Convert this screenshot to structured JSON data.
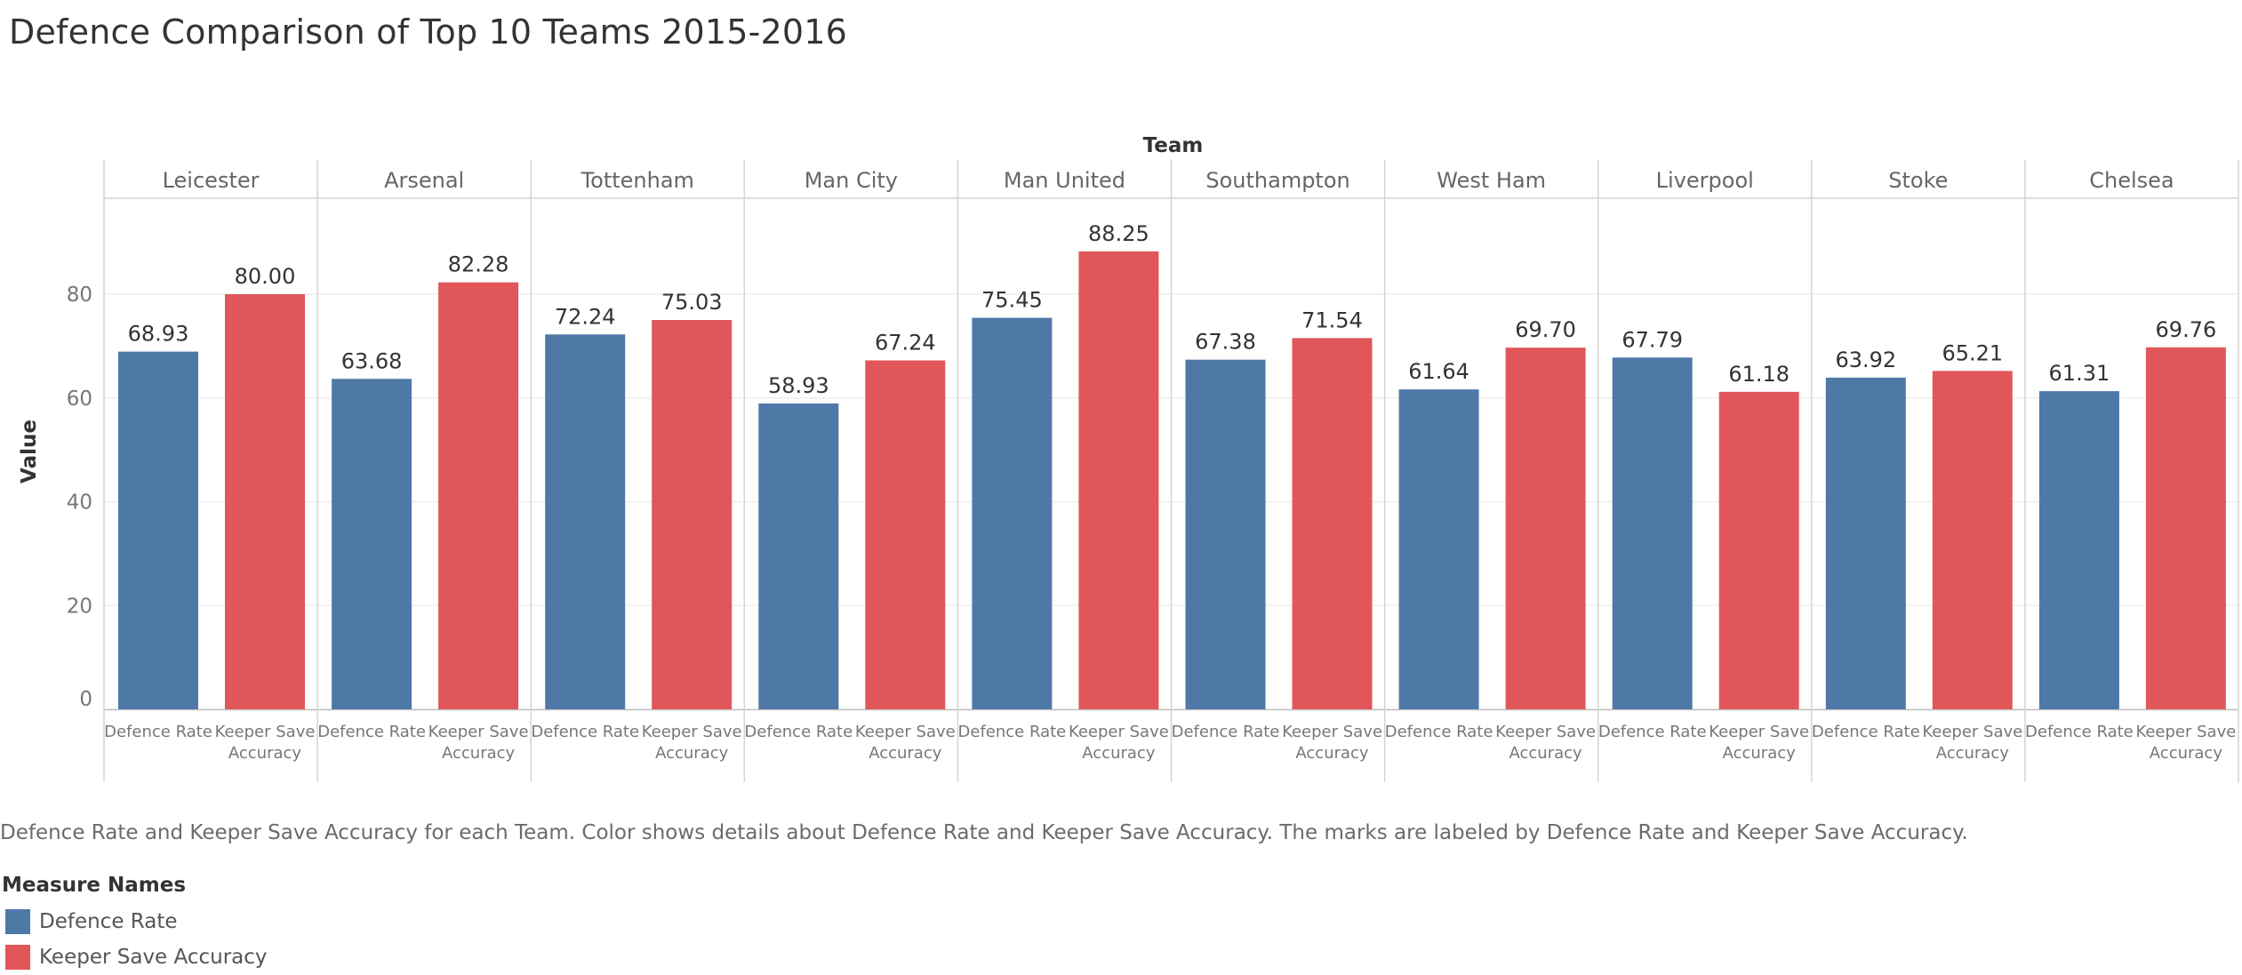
{
  "title": "Defence Comparison of Top 10 Teams 2015-2016",
  "caption": "Defence Rate and Keeper Save Accuracy for each Team.  Color shows details about Defence Rate and Keeper Save Accuracy.  The marks are labeled by Defence Rate and Keeper Save Accuracy.",
  "legend": {
    "title": "Measure Names",
    "items": [
      {
        "label": "Defence Rate",
        "color": "#4e79a7"
      },
      {
        "label": "Keeper Save Accuracy",
        "color": "#e15759"
      }
    ]
  },
  "chart_data": {
    "type": "bar",
    "column_header": "Team",
    "ylabel": "Value",
    "ylim": [
      0,
      100
    ],
    "yticks": [
      0,
      20,
      40,
      60,
      80
    ],
    "grid": true,
    "categories": [
      "Leicester",
      "Arsenal",
      "Tottenham",
      "Man City",
      "Man United",
      "Southampton",
      "West Ham",
      "Liverpool",
      "Stoke",
      "Chelsea"
    ],
    "measure_labels": [
      [
        "Defence Rate"
      ],
      [
        "Keeper Save",
        "Accuracy"
      ]
    ],
    "series": [
      {
        "name": "Defence Rate",
        "color": "#4e79a7",
        "values": [
          68.93,
          63.68,
          72.24,
          58.93,
          75.45,
          67.38,
          61.64,
          67.79,
          63.92,
          61.31
        ],
        "labels": [
          "68.93",
          "63.68",
          "72.24",
          "58.93",
          "75.45",
          "67.38",
          "61.64",
          "67.79",
          "63.92",
          "61.31"
        ]
      },
      {
        "name": "Keeper Save Accuracy",
        "color": "#e15759",
        "values": [
          80.0,
          82.28,
          75.03,
          67.24,
          88.25,
          71.54,
          69.7,
          61.18,
          65.21,
          69.76
        ],
        "labels": [
          "80.00",
          "82.28",
          "75.03",
          "67.24",
          "88.25",
          "71.54",
          "69.70",
          "61.18",
          "65.21",
          "69.76"
        ]
      }
    ]
  }
}
